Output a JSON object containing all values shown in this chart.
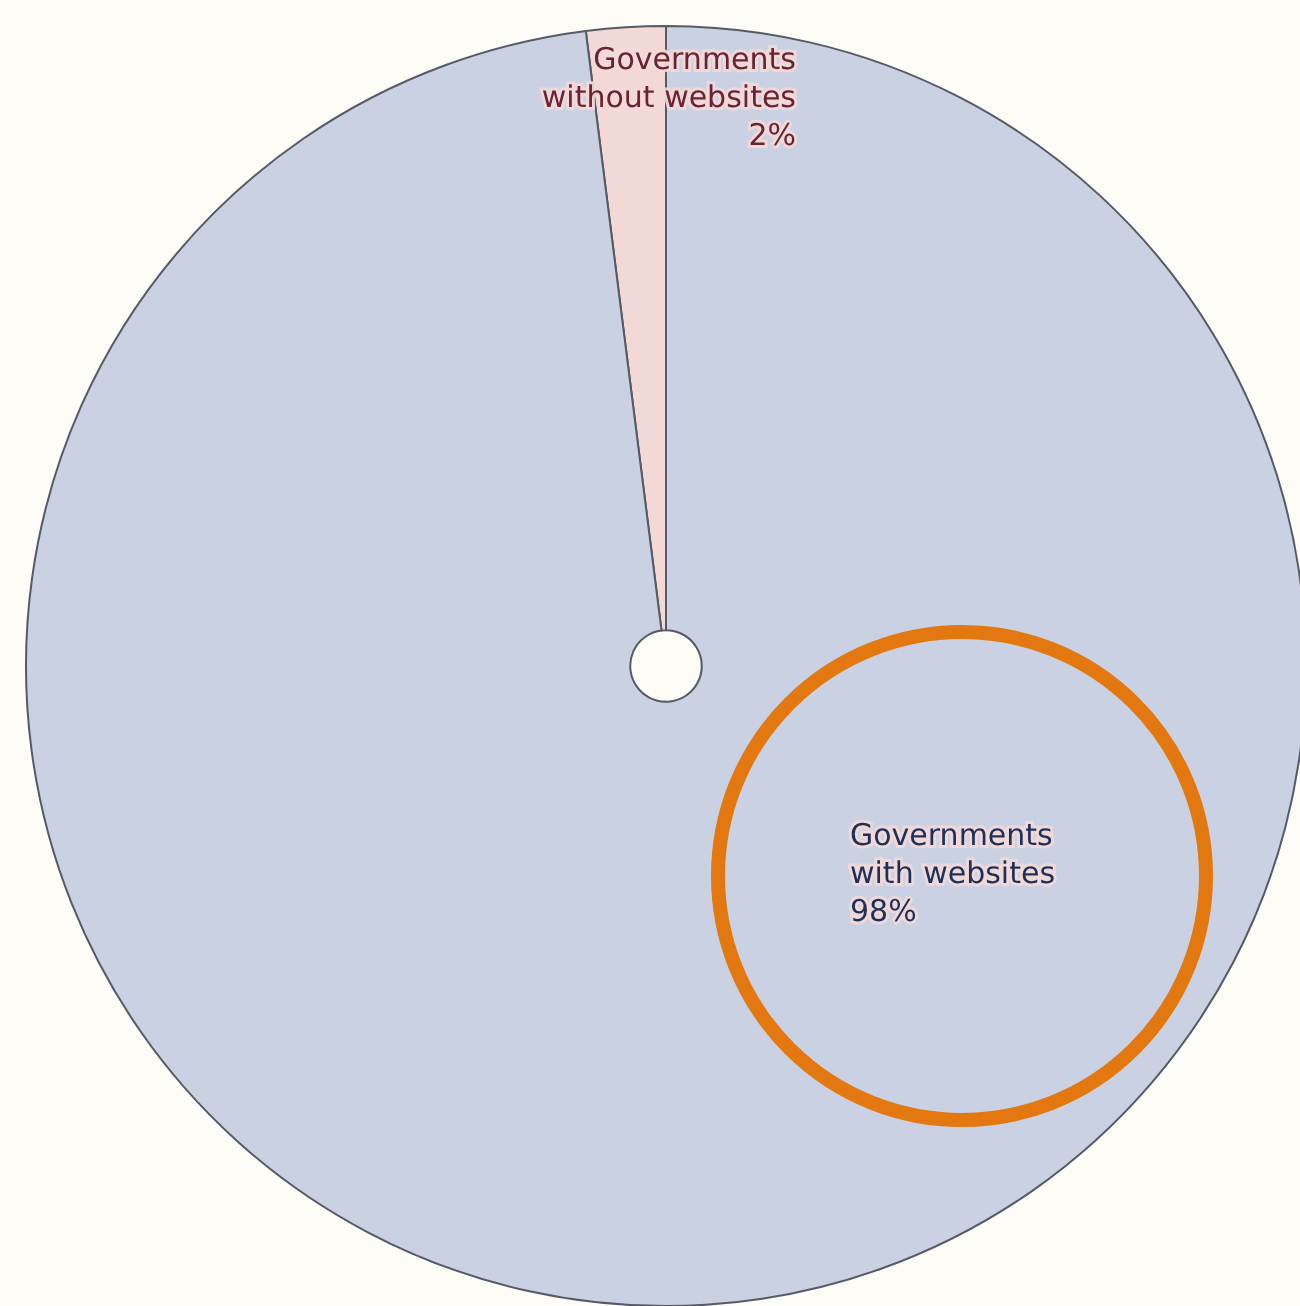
{
  "chart_data": {
    "type": "pie",
    "categories": [
      "Governments\nwithout websites",
      "Governments\nwith websites"
    ],
    "values": [
      2,
      98
    ],
    "colors": [
      "#f2d9d6",
      "#c9d1e3"
    ],
    "value_labels": [
      "2%",
      "98%"
    ]
  }
}
